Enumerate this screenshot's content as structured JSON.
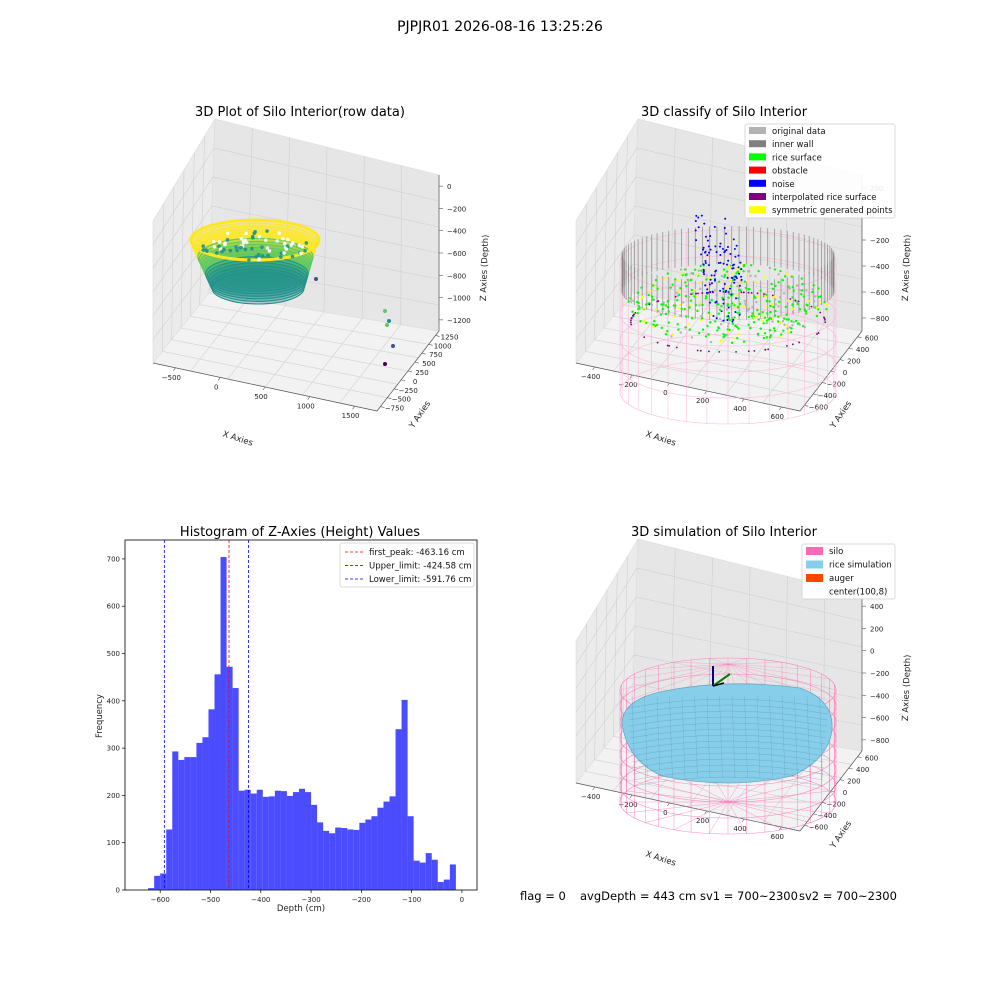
{
  "figure": {
    "suptitle": "PJPJR01 2026-08-16 13:25:26",
    "status": {
      "flag_text": "flag = 0",
      "avg_depth_text": "avgDepth = 443 cm",
      "sv1_text": "sv1 = 700~2300",
      "sv2_text": "sv2 = 700~2300"
    }
  },
  "panel_raw": {
    "title": "3D Plot of Silo Interior(row data)",
    "xlabel": "X Axies",
    "ylabel": "Y Axies",
    "zlabel": "Z Axies (Depth)",
    "xticks": [
      "−500",
      "0",
      "500",
      "1000",
      "1500"
    ],
    "yticks": [
      "−750",
      "−500",
      "−250",
      "0",
      "250",
      "500",
      "750",
      "1000",
      "1250"
    ],
    "zticks": [
      "0",
      "−200",
      "−400",
      "−600",
      "−800",
      "−1000",
      "−1200"
    ],
    "colormap": [
      "#440154",
      "#3b528b",
      "#21918c",
      "#5ec962",
      "#fde725"
    ]
  },
  "panel_classify": {
    "title": "3D classify of Silo Interior",
    "xlabel": "X Axies",
    "ylabel": "Y Axies",
    "zlabel": "Z Axies (Depth)",
    "xticks": [
      "−400",
      "−200",
      "0",
      "200",
      "400",
      "600"
    ],
    "yticks": [
      "−600",
      "−400",
      "−200",
      "0",
      "200",
      "400",
      "600"
    ],
    "zticks": [
      "200",
      "0",
      "−200",
      "−400",
      "−600",
      "−800"
    ],
    "legend": [
      {
        "label": "original data",
        "color": "#b3b3b3"
      },
      {
        "label": "inner wall",
        "color": "#808080"
      },
      {
        "label": "rice surface",
        "color": "#00ff00"
      },
      {
        "label": "obstacle",
        "color": "#ff0000"
      },
      {
        "label": "noise",
        "color": "#0000ff"
      },
      {
        "label": "interpolated rice surface",
        "color": "#800080"
      },
      {
        "label": "symmetric generated points",
        "color": "#ffff00"
      }
    ]
  },
  "panel_sim": {
    "title": "3D simulation of Silo Interior",
    "xlabel": "X Axies",
    "ylabel": "Y Axies",
    "zlabel": "Z Axies (Depth)",
    "xticks": [
      "−400",
      "−200",
      "0",
      "200",
      "400",
      "600"
    ],
    "yticks": [
      "−600",
      "−400",
      "−200",
      "0",
      "200",
      "400",
      "600"
    ],
    "zticks": [
      "400",
      "200",
      "0",
      "−200",
      "−400",
      "−600",
      "−800"
    ],
    "legend": [
      {
        "label": "silo",
        "color": "#ff69b4"
      },
      {
        "label": "rice simulation",
        "color": "#87ceeb"
      },
      {
        "label": "auger",
        "color": "#ff4500"
      },
      {
        "label": "center(100,8)",
        "color": "none"
      }
    ]
  },
  "chart_data": {
    "type": "bar",
    "title": "Histogram of Z-Axies (Height) Values",
    "xlabel": "Depth (cm)",
    "ylabel": "Frequency",
    "xlim": [
      -670,
      30
    ],
    "ylim": [
      0,
      740
    ],
    "xticks": [
      -600,
      -500,
      -400,
      -300,
      -200,
      -100,
      0
    ],
    "yticks": [
      0,
      100,
      200,
      300,
      400,
      500,
      600,
      700
    ],
    "bar_color": "#0000ff",
    "bin_width": 12,
    "bin_starts": [
      -624,
      -612,
      -600,
      -588,
      -576,
      -564,
      -552,
      -540,
      -528,
      -516,
      -504,
      -492,
      -480,
      -468,
      -456,
      -444,
      -432,
      -420,
      -408,
      -396,
      -384,
      -372,
      -360,
      -348,
      -336,
      -324,
      -312,
      -300,
      -288,
      -276,
      -264,
      -252,
      -240,
      -228,
      -216,
      -204,
      -192,
      -180,
      -168,
      -156,
      -144,
      -132,
      -120,
      -108,
      -96,
      -84,
      -72,
      -60,
      -48,
      -36,
      -24,
      -12
    ],
    "values": [
      4,
      30,
      35,
      128,
      293,
      275,
      281,
      281,
      311,
      323,
      382,
      456,
      704,
      472,
      427,
      210,
      212,
      204,
      212,
      197,
      198,
      210,
      209,
      199,
      207,
      214,
      207,
      180,
      143,
      125,
      120,
      132,
      131,
      128,
      127,
      142,
      149,
      156,
      174,
      187,
      198,
      340,
      402,
      156,
      62,
      58,
      78,
      64,
      17,
      22,
      54,
      0
    ],
    "ref_lines": [
      {
        "label": "first_peak: -463.16 cm",
        "value": -463.16,
        "color": "#ff0000"
      },
      {
        "label": "Upper_limit: -424.58 cm",
        "value": -424.58,
        "color": "#0000ff"
      },
      {
        "label": "Lower_limit: -591.76 cm",
        "value": -591.76,
        "color": "#0000ff"
      }
    ]
  }
}
